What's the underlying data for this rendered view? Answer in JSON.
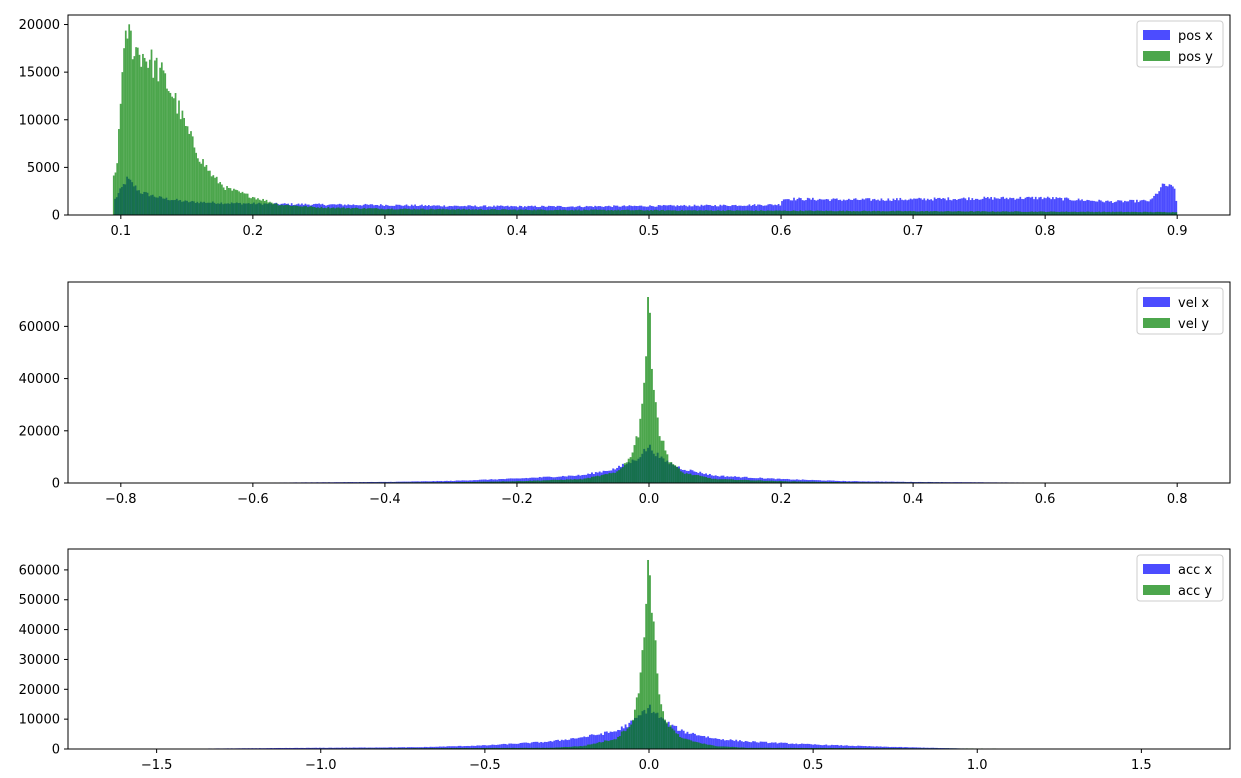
{
  "colors": {
    "series_a": "#0000ff",
    "series_b": "#008000",
    "bar_alpha": 0.7,
    "axes": "#000000"
  },
  "chart_data": [
    {
      "type": "bar",
      "title": "",
      "xlabel": "",
      "ylabel": "",
      "xlim": [
        0.06,
        0.94
      ],
      "ylim": [
        0,
        21000
      ],
      "xticks": [
        0.1,
        0.2,
        0.3,
        0.4,
        0.5,
        0.6,
        0.7,
        0.8,
        0.9
      ],
      "yticks": [
        0,
        5000,
        10000,
        15000,
        20000
      ],
      "grid": false,
      "legend_position": "top-right",
      "series": [
        {
          "name": "pos x",
          "color": "#0000ff",
          "points": [
            [
              0.095,
              1500
            ],
            [
              0.105,
              3800
            ],
            [
              0.115,
              2400
            ],
            [
              0.13,
              1800
            ],
            [
              0.15,
              1400
            ],
            [
              0.18,
              1250
            ],
            [
              0.2,
              1200
            ],
            [
              0.25,
              1100
            ],
            [
              0.3,
              1050
            ],
            [
              0.35,
              950
            ],
            [
              0.4,
              900
            ],
            [
              0.45,
              900
            ],
            [
              0.5,
              950
            ],
            [
              0.55,
              1000
            ],
            [
              0.58,
              1050
            ],
            [
              0.6,
              1100
            ],
            [
              0.601,
              1700
            ],
            [
              0.65,
              1600
            ],
            [
              0.7,
              1650
            ],
            [
              0.75,
              1750
            ],
            [
              0.8,
              1800
            ],
            [
              0.85,
              1400
            ],
            [
              0.88,
              1500
            ],
            [
              0.89,
              3200
            ],
            [
              0.898,
              2800
            ],
            [
              0.9,
              1000
            ]
          ]
        },
        {
          "name": "pos y",
          "color": "#008000",
          "points": [
            [
              0.094,
              3500
            ],
            [
              0.097,
              4800
            ],
            [
              0.1,
              13000
            ],
            [
              0.105,
              19500
            ],
            [
              0.11,
              17500
            ],
            [
              0.12,
              16500
            ],
            [
              0.13,
              15000
            ],
            [
              0.14,
              12500
            ],
            [
              0.15,
              9000
            ],
            [
              0.16,
              6000
            ],
            [
              0.17,
              4000
            ],
            [
              0.18,
              2800
            ],
            [
              0.2,
              1900
            ],
            [
              0.22,
              1100
            ],
            [
              0.25,
              800
            ],
            [
              0.3,
              650
            ],
            [
              0.4,
              550
            ],
            [
              0.5,
              500
            ],
            [
              0.6,
              450
            ],
            [
              0.7,
              400
            ],
            [
              0.8,
              350
            ],
            [
              0.9,
              300
            ]
          ]
        }
      ]
    },
    {
      "type": "bar",
      "title": "",
      "xlabel": "",
      "ylabel": "",
      "xlim": [
        -0.88,
        0.88
      ],
      "ylim": [
        0,
        77000
      ],
      "xticks": [
        -0.8,
        -0.6,
        -0.4,
        -0.2,
        0.0,
        0.2,
        0.4,
        0.6,
        0.8
      ],
      "yticks": [
        0,
        20000,
        40000,
        60000
      ],
      "grid": false,
      "legend_position": "top-right",
      "series": [
        {
          "name": "vel x",
          "color": "#0000ff",
          "points": [
            [
              -0.82,
              0
            ],
            [
              -0.6,
              150
            ],
            [
              -0.4,
              400
            ],
            [
              -0.3,
              800
            ],
            [
              -0.2,
              1700
            ],
            [
              -0.1,
              3000
            ],
            [
              -0.05,
              5500
            ],
            [
              -0.02,
              9000
            ],
            [
              0.0,
              14000
            ],
            [
              0.02,
              9000
            ],
            [
              0.05,
              5500
            ],
            [
              0.1,
              2800
            ],
            [
              0.2,
              1500
            ],
            [
              0.3,
              700
            ],
            [
              0.4,
              400
            ],
            [
              0.6,
              150
            ],
            [
              0.82,
              0
            ]
          ]
        },
        {
          "name": "vel y",
          "color": "#008000",
          "points": [
            [
              -0.82,
              0
            ],
            [
              -0.3,
              300
            ],
            [
              -0.2,
              700
            ],
            [
              -0.1,
              1500
            ],
            [
              -0.05,
              4000
            ],
            [
              -0.03,
              9000
            ],
            [
              -0.015,
              20000
            ],
            [
              -0.005,
              45000
            ],
            [
              0.0,
              73000
            ],
            [
              0.005,
              45000
            ],
            [
              0.015,
              20000
            ],
            [
              0.03,
              9000
            ],
            [
              0.05,
              4000
            ],
            [
              0.1,
              1500
            ],
            [
              0.2,
              700
            ],
            [
              0.3,
              300
            ],
            [
              0.82,
              0
            ]
          ]
        }
      ]
    },
    {
      "type": "bar",
      "title": "",
      "xlabel": "",
      "ylabel": "",
      "xlim": [
        -1.77,
        1.77
      ],
      "ylim": [
        0,
        67000
      ],
      "xticks": [
        -1.5,
        -1.0,
        -0.5,
        0.0,
        0.5,
        1.0,
        1.5
      ],
      "yticks": [
        0,
        10000,
        20000,
        30000,
        40000,
        50000,
        60000
      ],
      "grid": false,
      "legend_position": "top-right",
      "series": [
        {
          "name": "acc x",
          "color": "#0000ff",
          "points": [
            [
              -1.6,
              0
            ],
            [
              -1.0,
              400
            ],
            [
              -0.7,
              600
            ],
            [
              -0.5,
              1200
            ],
            [
              -0.3,
              2500
            ],
            [
              -0.2,
              4000
            ],
            [
              -0.1,
              6000
            ],
            [
              -0.05,
              9000
            ],
            [
              0.0,
              14000
            ],
            [
              0.05,
              9000
            ],
            [
              0.1,
              6000
            ],
            [
              0.2,
              3500
            ],
            [
              0.3,
              2500
            ],
            [
              0.5,
              1500
            ],
            [
              0.7,
              800
            ],
            [
              0.9,
              300
            ],
            [
              1.0,
              100
            ],
            [
              1.6,
              0
            ]
          ]
        },
        {
          "name": "acc y",
          "color": "#008000",
          "points": [
            [
              -1.6,
              0
            ],
            [
              -0.3,
              400
            ],
            [
              -0.2,
              1000
            ],
            [
              -0.1,
              3500
            ],
            [
              -0.05,
              9000
            ],
            [
              -0.03,
              20000
            ],
            [
              -0.015,
              40000
            ],
            [
              0.0,
              64000
            ],
            [
              0.015,
              40000
            ],
            [
              0.03,
              20000
            ],
            [
              0.05,
              9000
            ],
            [
              0.1,
              3500
            ],
            [
              0.2,
              1000
            ],
            [
              0.3,
              400
            ],
            [
              1.6,
              0
            ]
          ]
        }
      ]
    }
  ]
}
